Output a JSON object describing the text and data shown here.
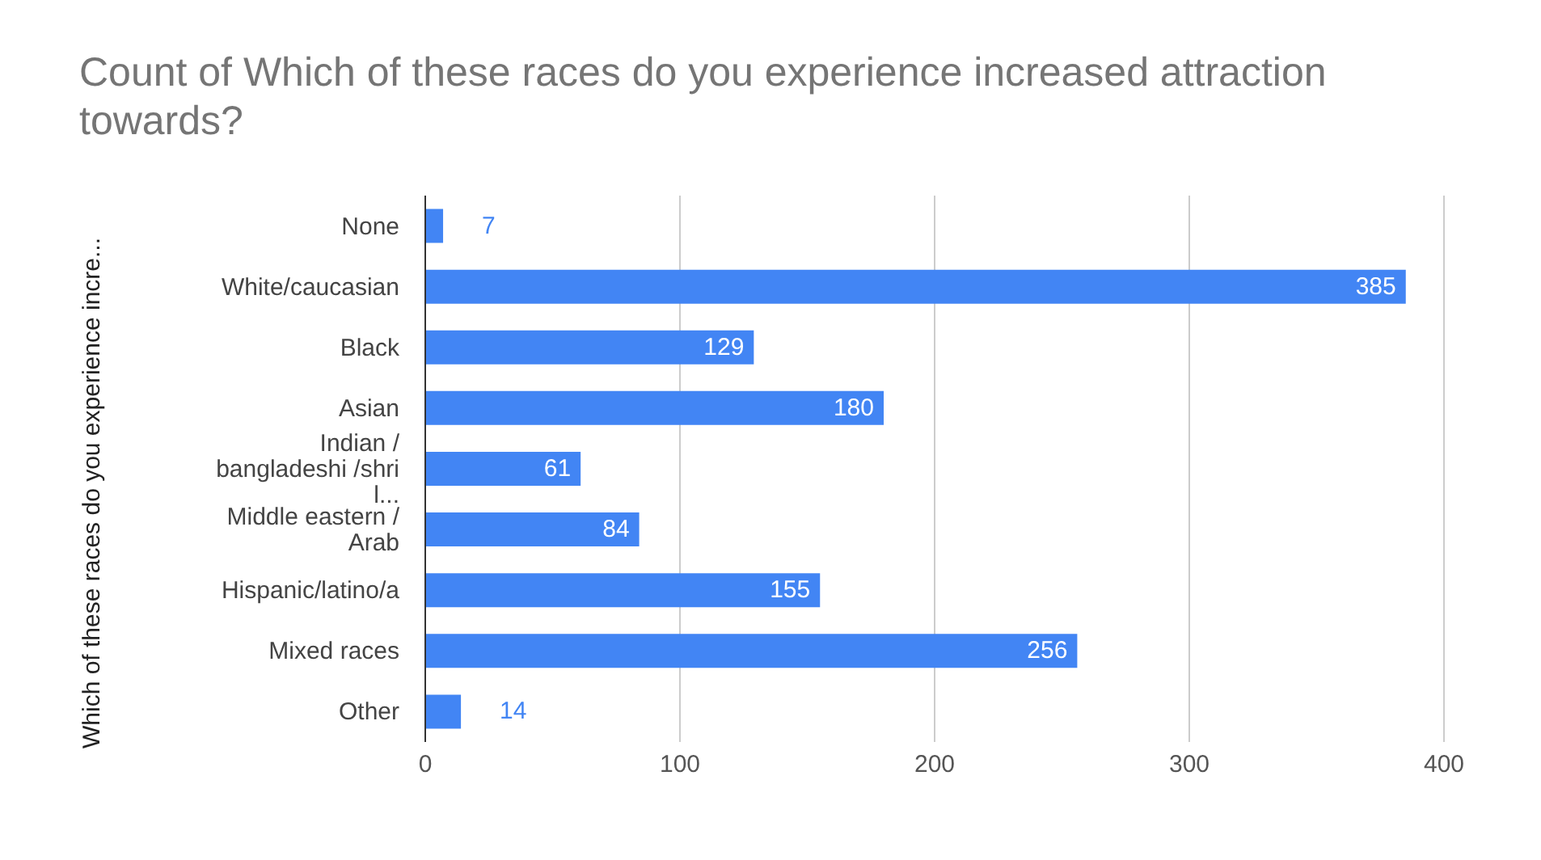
{
  "chart_data": {
    "type": "bar",
    "orientation": "horizontal",
    "title": "Count of Which of these races do you experience increased attraction towards?",
    "ylabel": "Which of these races do you experience incre...",
    "categories": [
      "None",
      "White/caucasian",
      "Black",
      "Asian",
      "Indian / bangladeshi /shri l...",
      "Middle eastern / Arab",
      "Hispanic/latino/a",
      "Mixed races",
      "Other"
    ],
    "values": [
      7,
      385,
      129,
      180,
      61,
      84,
      155,
      256,
      14
    ],
    "color": "#4285f4",
    "xlim": [
      0,
      400
    ],
    "xticks": [
      0,
      100,
      200,
      300,
      400
    ],
    "grid": "x",
    "data_labels": true,
    "legend": false
  }
}
